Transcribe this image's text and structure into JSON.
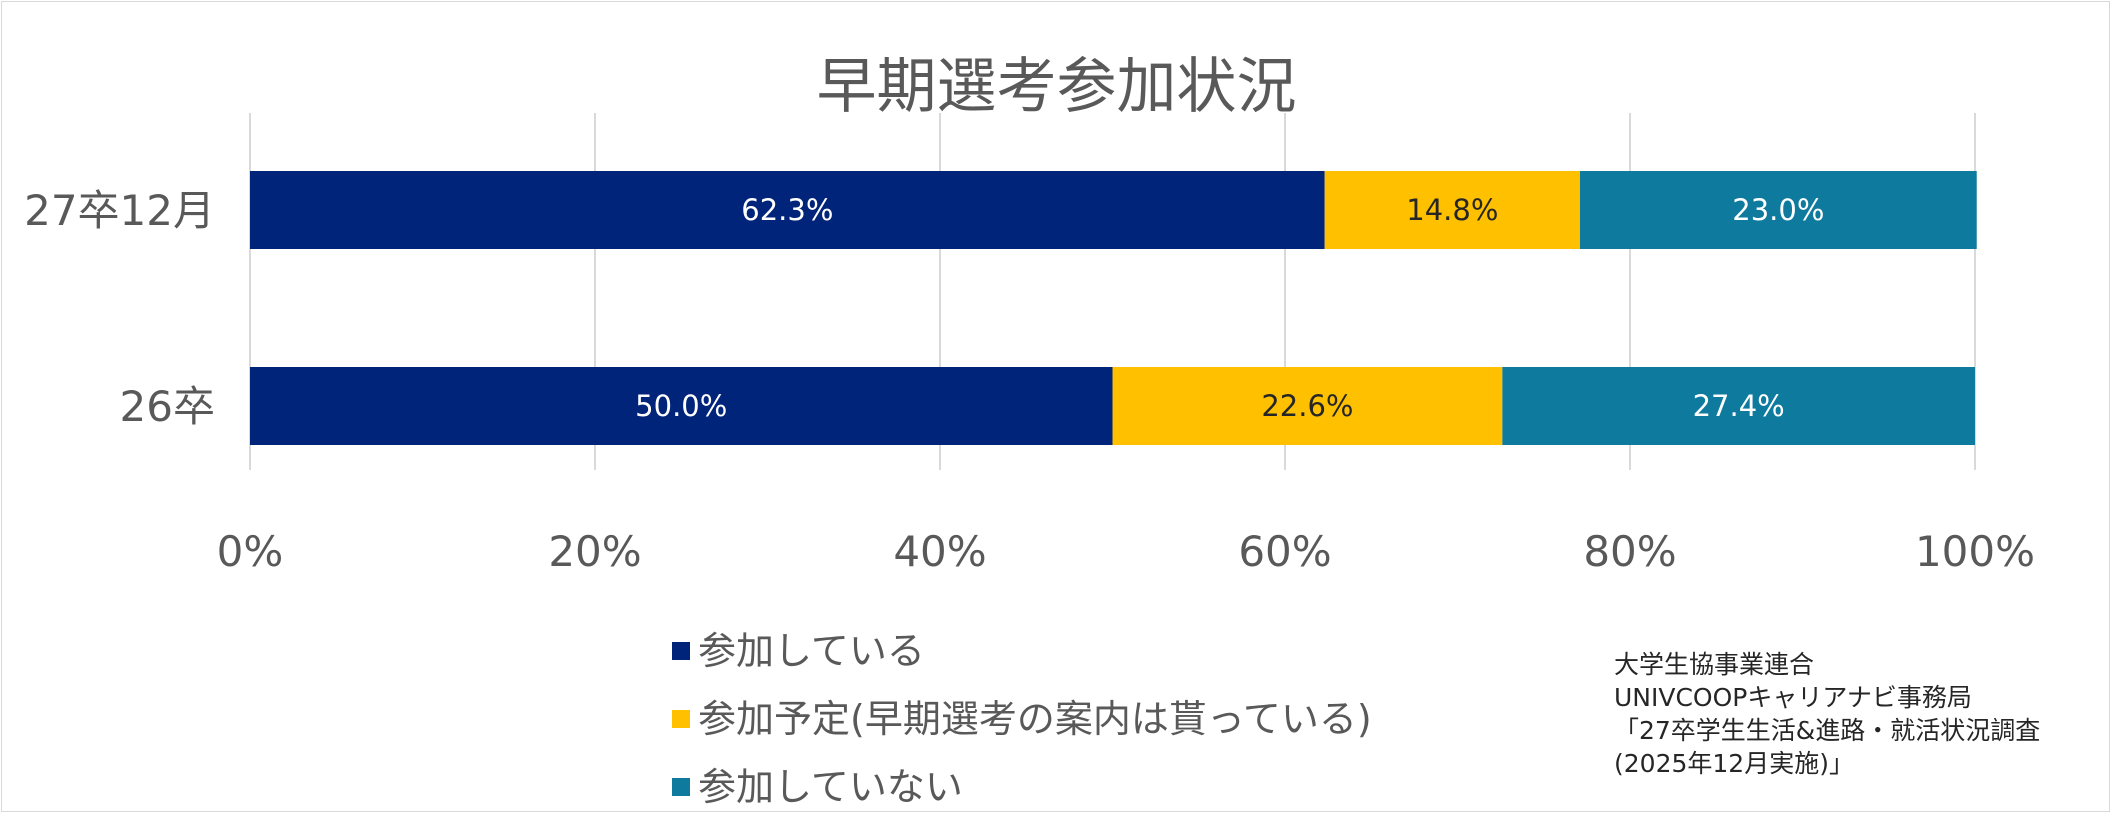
{
  "chart_data": {
    "type": "bar",
    "orientation": "horizontal",
    "stacked": "percent",
    "title": "早期選考参加状況",
    "categories": [
      "27卒12月",
      "26卒"
    ],
    "series": [
      {
        "name": "参加している",
        "values": [
          62.3,
          50.0
        ],
        "labels": [
          "62.3%",
          "50.0%"
        ],
        "color": "#002479",
        "label_color": "#ffffff"
      },
      {
        "name": "参加予定(早期選考の案内は貰っている)",
        "values": [
          14.8,
          22.6
        ],
        "labels": [
          "14.8%",
          "22.6%"
        ],
        "color": "#FFC000",
        "label_color": "#262626"
      },
      {
        "name": "参加していない",
        "values": [
          23.0,
          27.4
        ],
        "labels": [
          "23.0%",
          "27.4%"
        ],
        "color": "#0E7A9E",
        "label_color": "#ffffff"
      }
    ],
    "xlim": [
      0,
      100
    ],
    "xticks": [
      0,
      20,
      40,
      60,
      80,
      100
    ],
    "xtick_labels": [
      "0%",
      "20%",
      "40%",
      "60%",
      "80%",
      "100%"
    ],
    "grid": true,
    "legend_position": "bottom"
  },
  "legend_items": [
    {
      "label": "参加している",
      "color": "#002479"
    },
    {
      "label": "参加予定(早期選考の案内は貰っている)",
      "color": "#FFC000"
    },
    {
      "label": "参加していない",
      "color": "#0E7A9E"
    }
  ],
  "source": {
    "line1": "大学生協事業連合",
    "line2": "UNIVCOOPキャリアナビ事務局",
    "line3": "「27卒学生生活&進路・就活状況調査",
    "line4": "(2025年12月実施)」"
  }
}
